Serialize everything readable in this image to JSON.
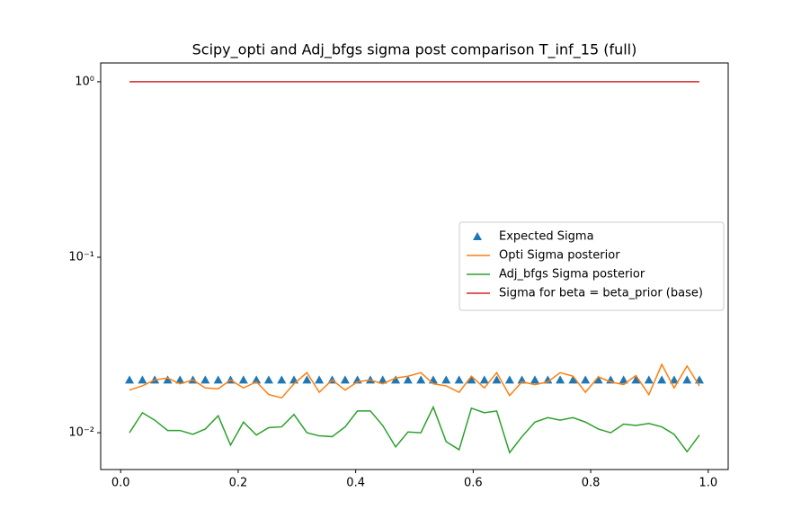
{
  "chart_data": {
    "type": "line",
    "title": "Scipy_opti and Adj_bfgs sigma post comparison T_inf_15 (full)",
    "x": [
      0.015,
      0.037,
      0.058,
      0.08,
      0.101,
      0.123,
      0.144,
      0.166,
      0.187,
      0.209,
      0.231,
      0.252,
      0.274,
      0.295,
      0.317,
      0.338,
      0.36,
      0.382,
      0.403,
      0.425,
      0.446,
      0.468,
      0.489,
      0.511,
      0.532,
      0.554,
      0.576,
      0.597,
      0.619,
      0.64,
      0.662,
      0.683,
      0.705,
      0.727,
      0.748,
      0.77,
      0.791,
      0.813,
      0.834,
      0.856,
      0.877,
      0.899,
      0.921,
      0.942,
      0.964,
      0.985
    ],
    "series": [
      {
        "name": "Expected Sigma",
        "color": "#1f77b4",
        "style": "marker",
        "values": [
          0.02,
          0.02,
          0.02,
          0.02,
          0.02,
          0.02,
          0.02,
          0.02,
          0.02,
          0.02,
          0.02,
          0.02,
          0.02,
          0.02,
          0.02,
          0.02,
          0.02,
          0.02,
          0.02,
          0.02,
          0.02,
          0.02,
          0.02,
          0.02,
          0.02,
          0.02,
          0.02,
          0.02,
          0.02,
          0.02,
          0.02,
          0.02,
          0.02,
          0.02,
          0.02,
          0.02,
          0.02,
          0.02,
          0.02,
          0.02,
          0.02,
          0.02,
          0.02,
          0.02,
          0.02,
          0.02
        ]
      },
      {
        "name": "Opti Sigma posterior",
        "color": "#ff7f0e",
        "style": "line",
        "values": [
          0.0175,
          0.0185,
          0.02,
          0.0205,
          0.019,
          0.02,
          0.018,
          0.0178,
          0.02,
          0.018,
          0.0195,
          0.0165,
          0.0158,
          0.019,
          0.022,
          0.017,
          0.02,
          0.0175,
          0.0195,
          0.02,
          0.019,
          0.0205,
          0.021,
          0.022,
          0.019,
          0.0185,
          0.017,
          0.021,
          0.018,
          0.022,
          0.0163,
          0.0195,
          0.0188,
          0.0195,
          0.022,
          0.021,
          0.017,
          0.0208,
          0.0195,
          0.0188,
          0.0212,
          0.0165,
          0.0245,
          0.018,
          0.024,
          0.0185
        ]
      },
      {
        "name": "Adj_bfgs Sigma posterior",
        "color": "#2ca02c",
        "style": "line",
        "values": [
          0.01,
          0.013,
          0.0118,
          0.0103,
          0.0103,
          0.0098,
          0.0105,
          0.0125,
          0.0085,
          0.0115,
          0.0097,
          0.0107,
          0.0108,
          0.0127,
          0.01,
          0.0096,
          0.0095,
          0.0108,
          0.0133,
          0.0133,
          0.011,
          0.0083,
          0.0101,
          0.01,
          0.014,
          0.0089,
          0.008,
          0.0138,
          0.013,
          0.0133,
          0.0077,
          0.0095,
          0.0115,
          0.0122,
          0.0118,
          0.0122,
          0.0115,
          0.0105,
          0.01,
          0.0112,
          0.011,
          0.0113,
          0.0108,
          0.0098,
          0.0078,
          0.0097
        ]
      },
      {
        "name": "Sigma for beta = beta_prior (base)",
        "color": "#d62728",
        "style": "line",
        "values": [
          1,
          1,
          1,
          1,
          1,
          1,
          1,
          1,
          1,
          1,
          1,
          1,
          1,
          1,
          1,
          1,
          1,
          1,
          1,
          1,
          1,
          1,
          1,
          1,
          1,
          1,
          1,
          1,
          1,
          1,
          1,
          1,
          1,
          1,
          1,
          1,
          1,
          1,
          1,
          1,
          1,
          1,
          1,
          1,
          1,
          1
        ]
      }
    ],
    "xlim": [
      -0.034,
      1.034
    ],
    "xticks": [
      {
        "value": 0,
        "label": "0.0"
      },
      0.2,
      0.4,
      0.6,
      0.8,
      {
        "value": 1,
        "label": "1.0"
      }
    ],
    "ylim": [
      0.00617,
      1.28
    ],
    "log_y": true,
    "yticks": [
      {
        "value": 1,
        "label": "10⁰"
      },
      {
        "value": 0.1,
        "label": "10⁻¹"
      },
      {
        "value": 0.01,
        "label": "10⁻²"
      }
    ],
    "legend": "center right"
  }
}
